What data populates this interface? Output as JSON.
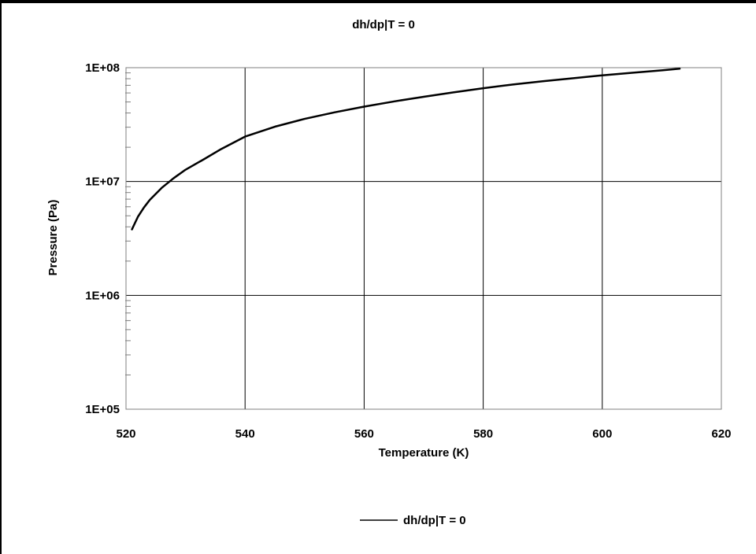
{
  "chart_data": {
    "type": "line",
    "title": "dh/dp|T = 0",
    "xlabel": "Temperature (K)",
    "ylabel": "Pressure (Pa)",
    "xlim": [
      520,
      620
    ],
    "ylim": [
      100000,
      100000000
    ],
    "y_scale": "log",
    "x_ticks": [
      520,
      540,
      560,
      580,
      600,
      620
    ],
    "y_ticks": [
      100000,
      1000000,
      10000000,
      100000000
    ],
    "x_tick_labels": [
      "520",
      "540",
      "560",
      "580",
      "600",
      "620"
    ],
    "y_tick_labels": [
      "1E+05",
      "1E+06",
      "1E+07",
      "1E+08"
    ],
    "grid": true,
    "legend_position": "bottom",
    "series_color": "#000000",
    "gridline_color": "#000000",
    "series": [
      {
        "name": "dh/dp|T = 0",
        "x": [
          521,
          522,
          523,
          524,
          526,
          528,
          530,
          533,
          536,
          540,
          545,
          550,
          555,
          560,
          565,
          570,
          575,
          580,
          585,
          590,
          595,
          600,
          605,
          610,
          613
        ],
        "y": [
          3800000,
          4900000,
          5900000,
          6900000,
          8800000,
          10700000,
          12700000,
          15600000,
          19300000,
          24800000,
          30300000,
          35500000,
          40500000,
          45500000,
          50500000,
          55500000,
          60700000,
          66000000,
          71200000,
          76000000,
          80700000,
          85700000,
          90100000,
          94700000,
          98000000
        ]
      }
    ]
  }
}
